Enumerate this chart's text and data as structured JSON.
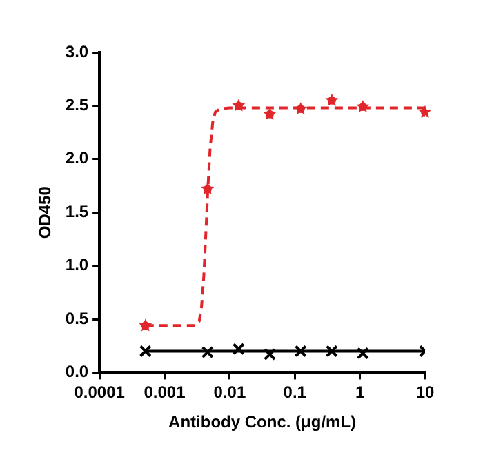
{
  "chart_data": {
    "type": "scatter",
    "xlabel": "Antibody Conc. (μg/mL)",
    "ylabel": "OD450",
    "log": "x",
    "grid": false,
    "legend": false,
    "xlim": [
      0.0001,
      10
    ],
    "xticks": [
      0.0001,
      0.001,
      0.01,
      0.1,
      1,
      10
    ],
    "ylim": [
      0,
      3
    ],
    "yticks": [
      {
        "value": 0,
        "label": "0.0"
      },
      {
        "value": 0.5,
        "label": "0.5"
      },
      {
        "value": 1,
        "label": "1.0"
      },
      {
        "value": 1.5,
        "label": "1.5"
      },
      {
        "value": 2,
        "label": "2.0"
      },
      {
        "value": 2.5,
        "label": "2.5"
      },
      {
        "value": 3,
        "label": "3.0"
      }
    ],
    "series": [
      {
        "type": "line",
        "color": "#e0262b",
        "marker": "none",
        "line_style": "dashed",
        "x": [
          0.000508,
          0.003,
          0.0034,
          0.0037,
          0.004,
          0.0043,
          0.0046,
          0.005,
          0.0055,
          0.006,
          0.007,
          0.01,
          10
        ],
        "values": [
          0.44,
          0.44,
          0.48,
          0.62,
          0.9,
          1.3,
          1.7,
          2.1,
          2.35,
          2.44,
          2.47,
          2.48,
          2.48
        ]
      },
      {
        "type": "line",
        "color": "#000000",
        "marker": "none",
        "line_style": "solid",
        "x": [
          0.000508,
          10
        ],
        "values": [
          0.2,
          0.2
        ]
      },
      {
        "type": "scatter",
        "color": "#e0262b",
        "marker": "star",
        "x": [
          0.000508,
          0.00457,
          0.0137,
          0.0412,
          0.123,
          0.37,
          1.11,
          10
        ],
        "values": [
          0.44,
          1.72,
          2.5,
          2.42,
          2.47,
          2.55,
          2.49,
          2.44
        ]
      },
      {
        "type": "scatter",
        "color": "#000000",
        "marker": "cross",
        "x": [
          0.000508,
          0.00457,
          0.0137,
          0.0412,
          0.123,
          0.37,
          1.11,
          10
        ],
        "values": [
          0.2,
          0.19,
          0.22,
          0.17,
          0.2,
          0.2,
          0.18,
          0.2
        ]
      }
    ]
  }
}
